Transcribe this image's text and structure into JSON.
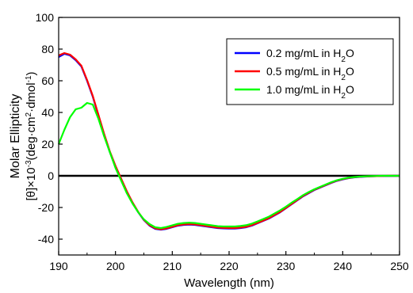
{
  "chart_data": {
    "type": "line",
    "xlabel": "Wavelength (nm)",
    "ylabel_line1": "Molar Ellipticity",
    "ylabel_line2": {
      "p1": "[θ]×10",
      "sup1": "-3",
      "p2": "(deg·cm",
      "sup2": "2",
      "p3": "·dmol",
      "sup3": "-1",
      "p4": ")"
    },
    "xlim": [
      190,
      250
    ],
    "ylim": [
      -50,
      100
    ],
    "xticks": [
      "190",
      "200",
      "210",
      "220",
      "230",
      "240",
      "250"
    ],
    "yticks": [
      "-40",
      "-20",
      "0",
      "20",
      "40",
      "60",
      "80",
      "100"
    ],
    "zero_line": 0,
    "legend_position": "top-right",
    "series": [
      {
        "label_main": "0.2 mg/mL in H",
        "label_sub": "2",
        "label_tail": "O",
        "color": "#0000ff",
        "x": [
          190,
          191,
          192,
          193,
          194,
          195,
          196,
          197,
          198,
          199,
          200,
          201,
          202,
          203,
          204,
          205,
          206,
          207,
          208,
          209,
          210,
          211,
          212,
          213,
          214,
          215,
          216,
          217,
          218,
          219,
          220,
          221,
          222,
          223,
          224,
          225,
          226,
          227,
          228,
          229,
          230,
          231,
          232,
          233,
          234,
          235,
          236,
          237,
          238,
          239,
          240,
          241,
          242,
          243,
          244,
          245,
          246,
          247,
          248,
          249,
          250
        ],
        "y": [
          75,
          77,
          76,
          73,
          69,
          60,
          50,
          38,
          26,
          15,
          6,
          -2,
          -10,
          -17,
          -23,
          -28,
          -31.5,
          -33.5,
          -34,
          -33.5,
          -32.5,
          -31.5,
          -31,
          -30.8,
          -31,
          -31.5,
          -32,
          -32.5,
          -33,
          -33.2,
          -33.3,
          -33.3,
          -33,
          -32.5,
          -31.5,
          -30,
          -28.5,
          -27,
          -25,
          -23,
          -20.5,
          -18,
          -15.5,
          -13,
          -11,
          -9,
          -7.5,
          -6,
          -4.5,
          -3.2,
          -2.3,
          -1.5,
          -1,
          -0.7,
          -0.5,
          -0.3,
          -0.2,
          -0.1,
          -0.1,
          0,
          0
        ]
      },
      {
        "label_main": "0.5 mg/mL in H",
        "label_sub": "2",
        "label_tail": "O",
        "color": "#ff0000",
        "x": [
          190,
          191,
          192,
          193,
          194,
          195,
          196,
          197,
          198,
          199,
          200,
          201,
          202,
          203,
          204,
          205,
          206,
          207,
          208,
          209,
          210,
          211,
          212,
          213,
          214,
          215,
          216,
          217,
          218,
          219,
          220,
          221,
          222,
          223,
          224,
          225,
          226,
          227,
          228,
          229,
          230,
          231,
          232,
          233,
          234,
          235,
          236,
          237,
          238,
          239,
          240,
          241,
          242,
          243,
          244,
          245,
          246,
          247,
          248,
          249,
          250
        ],
        "y": [
          76,
          77.5,
          76.5,
          73.5,
          69.5,
          60.5,
          50.5,
          38.5,
          26.5,
          15.5,
          6.3,
          -1.8,
          -9.8,
          -16.8,
          -22.8,
          -27.8,
          -31.2,
          -33.2,
          -33.8,
          -33.2,
          -32.2,
          -31.2,
          -30.7,
          -30.5,
          -30.7,
          -31.2,
          -31.7,
          -32.2,
          -32.7,
          -32.9,
          -33,
          -33,
          -32.7,
          -32.2,
          -31.2,
          -29.8,
          -28.3,
          -26.8,
          -24.8,
          -22.8,
          -20.3,
          -17.8,
          -15.3,
          -12.8,
          -10.8,
          -8.8,
          -7.3,
          -5.8,
          -4.3,
          -3,
          -2.1,
          -1.4,
          -0.9,
          -0.6,
          -0.4,
          -0.3,
          -0.2,
          -0.1,
          0,
          0,
          0
        ]
      },
      {
        "label_main": "1.0 mg/mL in H",
        "label_sub": "2",
        "label_tail": "O",
        "color": "#00ff00",
        "x": [
          190,
          191,
          192,
          193,
          194,
          195,
          196,
          197,
          198,
          199,
          200,
          201,
          202,
          203,
          204,
          205,
          206,
          207,
          208,
          209,
          210,
          211,
          212,
          213,
          214,
          215,
          216,
          217,
          218,
          219,
          220,
          221,
          222,
          223,
          224,
          225,
          226,
          227,
          228,
          229,
          230,
          231,
          232,
          233,
          234,
          235,
          236,
          237,
          238,
          239,
          240,
          241,
          242,
          243,
          244,
          245,
          246,
          247,
          248,
          249,
          250
        ],
        "y": [
          20,
          29,
          37,
          42,
          43,
          46,
          45,
          36,
          25,
          15,
          5,
          -3,
          -11,
          -17.5,
          -23,
          -27.5,
          -30.5,
          -32.5,
          -33,
          -32.3,
          -31.3,
          -30.3,
          -29.8,
          -29.6,
          -29.8,
          -30.3,
          -30.8,
          -31.3,
          -31.8,
          -32,
          -32,
          -32,
          -31.7,
          -31.2,
          -30.2,
          -28.8,
          -27.3,
          -25.8,
          -23.8,
          -21.8,
          -19.5,
          -17,
          -14.7,
          -12.3,
          -10.3,
          -8.5,
          -7,
          -5.5,
          -4,
          -2.8,
          -1.9,
          -1.2,
          -0.8,
          -0.5,
          -0.3,
          -0.2,
          -0.1,
          0,
          0,
          0,
          0
        ]
      }
    ]
  }
}
